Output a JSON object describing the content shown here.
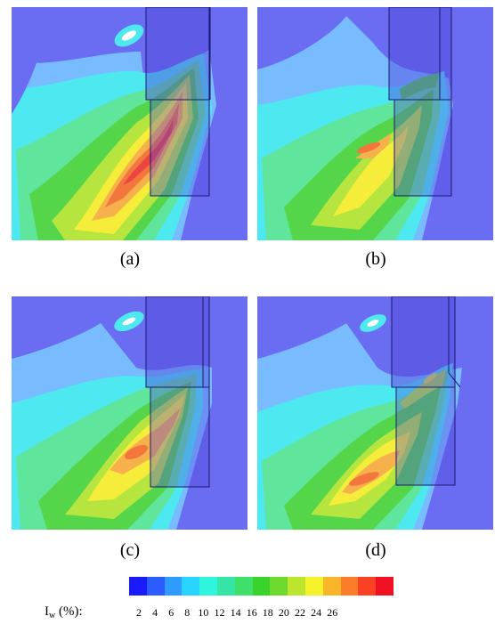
{
  "panels": [
    {
      "id": "a",
      "caption": "(a)"
    },
    {
      "id": "b",
      "caption": "(b)"
    },
    {
      "id": "c",
      "caption": "(c)"
    },
    {
      "id": "d",
      "caption": "(d)"
    }
  ],
  "legend": {
    "symbol": "I",
    "subscript": "w",
    "unit_text": " (%):",
    "ticks": [
      "2",
      "4",
      "6",
      "8",
      "10",
      "12",
      "14",
      "16",
      "18",
      "20",
      "22",
      "24",
      "26"
    ],
    "colors": [
      "#1a1aff",
      "#2a5cff",
      "#2f9bff",
      "#27d3ff",
      "#2ff5dd",
      "#35e5a6",
      "#3ee06a",
      "#39d12c",
      "#6cd92c",
      "#bde52e",
      "#f5f22a",
      "#f8b52a",
      "#fb7d2a",
      "#fc4024",
      "#ef1022"
    ]
  },
  "background_color": "#6a6cf1"
}
